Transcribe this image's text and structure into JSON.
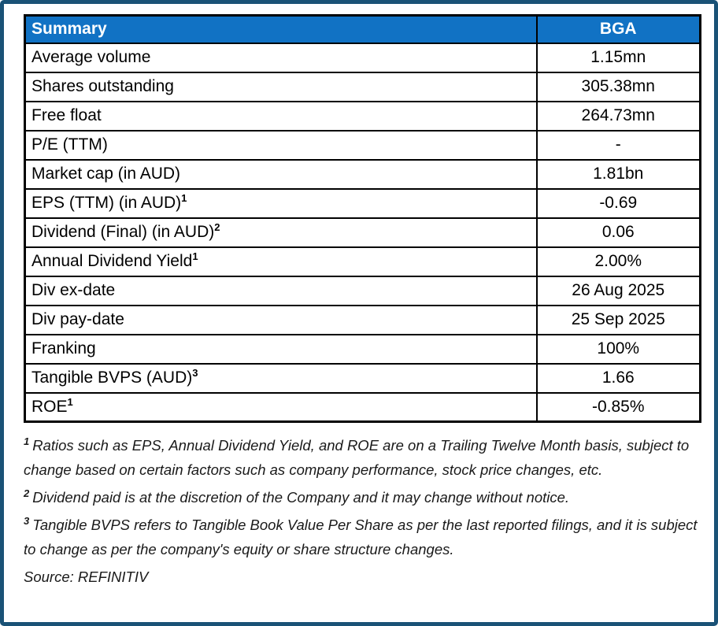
{
  "frame": {
    "border_color": "#1A5276"
  },
  "table": {
    "header": {
      "label": "Summary",
      "value": "BGA",
      "bg_color": "#1172C4",
      "text_color": "#FFFFFF"
    },
    "rows": [
      {
        "label": "Average volume",
        "sup": "",
        "value": "1.15mn"
      },
      {
        "label": "Shares outstanding",
        "sup": "",
        "value": "305.38mn"
      },
      {
        "label": "Free float",
        "sup": "",
        "value": "264.73mn"
      },
      {
        "label": "P/E (TTM)",
        "sup": "",
        "value": "-"
      },
      {
        "label": "Market cap (in AUD)",
        "sup": "",
        "value": "1.81bn"
      },
      {
        "label": "EPS (TTM) (in AUD)",
        "sup": "1",
        "value": "-0.69"
      },
      {
        "label": "Dividend (Final) (in AUD)",
        "sup": "2",
        "value": "0.06"
      },
      {
        "label": "Annual Dividend Yield",
        "sup": "1",
        "value": "2.00%"
      },
      {
        "label": "Div ex-date",
        "sup": "",
        "value": "26 Aug 2025"
      },
      {
        "label": "Div pay-date",
        "sup": "",
        "value": "25 Sep 2025"
      },
      {
        "label": "Franking",
        "sup": "",
        "value": "100%"
      },
      {
        "label": "Tangible BVPS (AUD)",
        "sup": "3",
        "value": "1.66"
      },
      {
        "label": "ROE",
        "sup": "1",
        "value": "-0.85%"
      }
    ]
  },
  "footnotes": [
    {
      "sup": "1",
      "text": "Ratios such as EPS,  Annual Dividend Yield, and ROE are on a Trailing Twelve Month basis, subject to change based on certain factors such as company performance, stock price changes, etc."
    },
    {
      "sup": "2",
      "text": "Dividend paid is at the discretion of the Company and it may change without notice."
    },
    {
      "sup": "3",
      "text": "Tangible BVPS refers to Tangible Book Value Per Share as per the last reported filings, and it is subject to change as per the company's equity or share structure changes."
    }
  ],
  "source": "Source: REFINITIV"
}
